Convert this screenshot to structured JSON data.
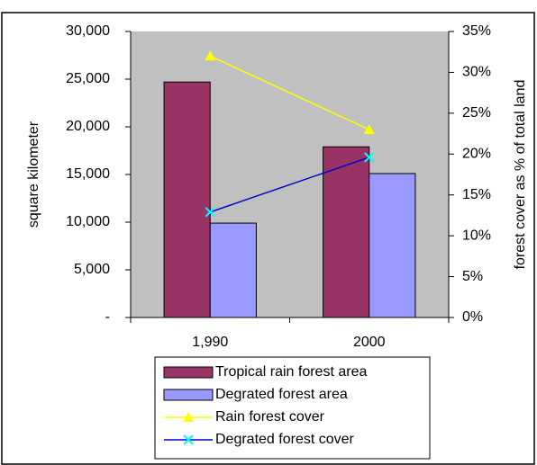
{
  "chart_data": {
    "type": "bar",
    "categories": [
      "1,990",
      "2000"
    ],
    "y_label": "square kilometer",
    "y2_label": "forest cover as % of total land",
    "ylim": [
      0,
      30000
    ],
    "yticks": [
      {
        "value": 0,
        "label": "-"
      },
      {
        "value": 5000,
        "label": "5,000"
      },
      {
        "value": 10000,
        "label": "10,000"
      },
      {
        "value": 15000,
        "label": "15,000"
      },
      {
        "value": 20000,
        "label": "20,000"
      },
      {
        "value": 25000,
        "label": "25,000"
      },
      {
        "value": 30000,
        "label": "30,000"
      }
    ],
    "y2lim": [
      0,
      35
    ],
    "y2ticks": [
      {
        "value": 0,
        "label": "0%"
      },
      {
        "value": 5,
        "label": "5%"
      },
      {
        "value": 10,
        "label": "10%"
      },
      {
        "value": 15,
        "label": "15%"
      },
      {
        "value": 20,
        "label": "20%"
      },
      {
        "value": 25,
        "label": "25%"
      },
      {
        "value": 30,
        "label": "30%"
      },
      {
        "value": 35,
        "label": "35%"
      }
    ],
    "legend": "bottom",
    "series": [
      {
        "name": "Tropical rain forest area",
        "type": "bar",
        "color": "#993366",
        "values": [
          24700,
          17900
        ]
      },
      {
        "name": "Degrated forest area",
        "type": "bar",
        "color": "#9999ff",
        "values": [
          9900,
          15100
        ]
      },
      {
        "name": "Rain forest cover",
        "type": "line",
        "axis": "y2",
        "color": "#ffff00",
        "marker": "triangle",
        "values": [
          32,
          23
        ]
      },
      {
        "name": "Degrated forest cover",
        "type": "line",
        "axis": "y2",
        "color": "#0000cc",
        "marker": "cross",
        "values": [
          12.9,
          19.6
        ]
      }
    ]
  }
}
